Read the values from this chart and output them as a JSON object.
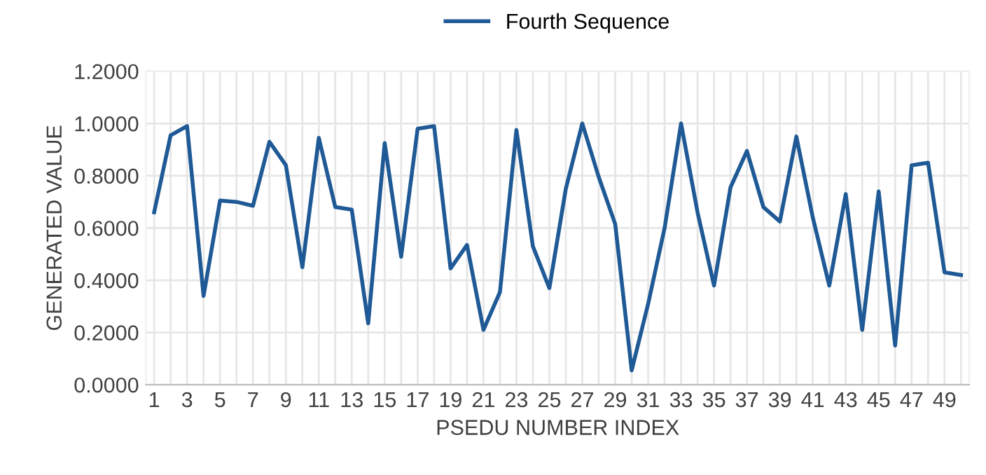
{
  "chart_data": {
    "type": "line",
    "xlabel": "PSEDU NUMBER INDEX",
    "ylabel": "GENERATED VALUE",
    "categories": [
      "1",
      null,
      "3",
      null,
      "5",
      null,
      "7",
      null,
      "9",
      null,
      "11",
      null,
      "13",
      null,
      "15",
      null,
      "17",
      null,
      "19",
      null,
      "21",
      null,
      "23",
      null,
      "25",
      null,
      "27",
      null,
      "29",
      null,
      "31",
      null,
      "33",
      null,
      "35",
      null,
      "37",
      null,
      "39",
      null,
      "41",
      null,
      "43",
      null,
      "45",
      null,
      "47",
      null,
      "49",
      null
    ],
    "series": [
      {
        "name": "Fourth Sequence",
        "color": "#1f5a96",
        "values": [
          0.66,
          0.955,
          0.99,
          0.34,
          0.705,
          0.7,
          0.685,
          0.93,
          0.84,
          0.45,
          0.945,
          0.68,
          0.67,
          0.235,
          0.925,
          0.49,
          0.98,
          0.99,
          0.445,
          0.535,
          0.21,
          0.355,
          0.975,
          0.53,
          0.37,
          0.75,
          1.0,
          0.795,
          0.615,
          0.055,
          0.31,
          0.6,
          1.0,
          0.66,
          0.38,
          0.755,
          0.895,
          0.68,
          0.625,
          0.95,
          0.64,
          0.38,
          0.73,
          0.21,
          0.74,
          0.15,
          0.84,
          0.85,
          0.43,
          0.42
        ]
      }
    ],
    "ylim": [
      0,
      1.2
    ],
    "yticks": [
      {
        "value": 0,
        "label": "0.0000"
      },
      {
        "value": 0.2,
        "label": "0.2000"
      },
      {
        "value": 0.4,
        "label": "0.4000"
      },
      {
        "value": 0.6,
        "label": "0.6000"
      },
      {
        "value": 0.8,
        "label": "0.8000"
      },
      {
        "value": 1.0,
        "label": "1.0000"
      },
      {
        "value": 1.2,
        "label": "1.2000"
      }
    ],
    "grid": true,
    "legend": "top",
    "marker": "none",
    "line_style": "solid"
  }
}
